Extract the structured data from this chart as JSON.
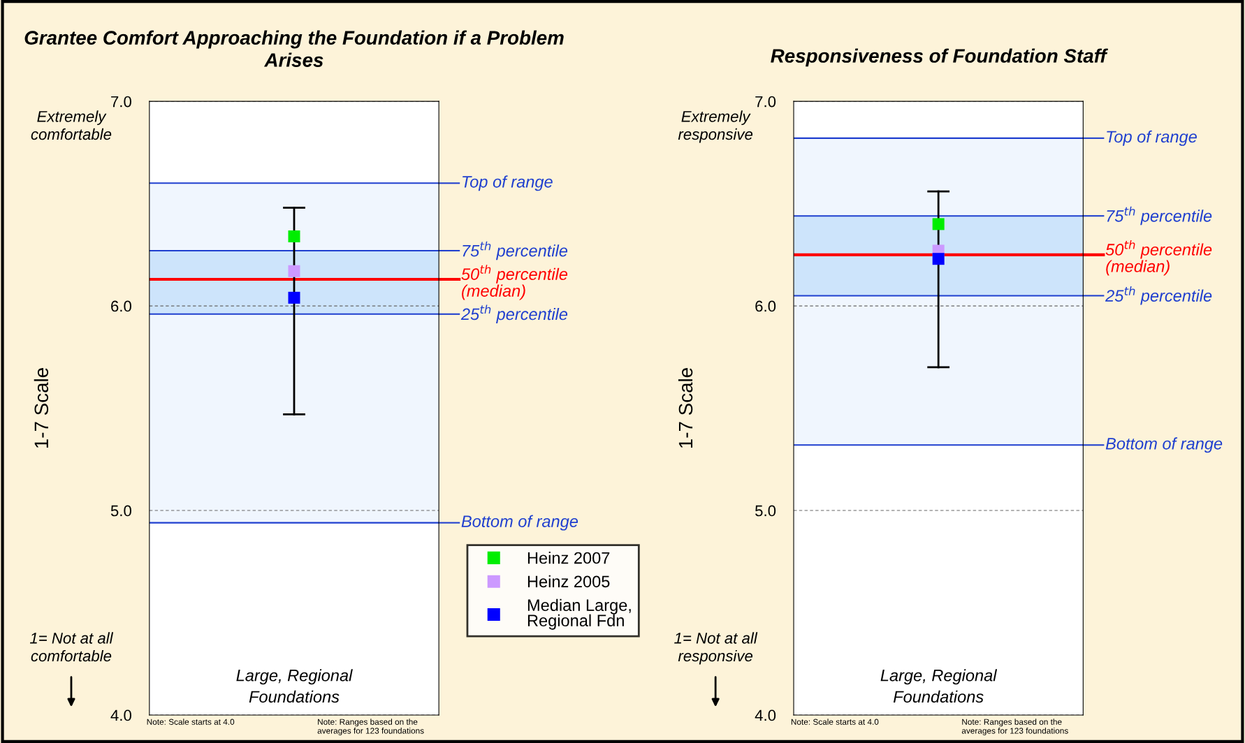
{
  "chart_data": [
    {
      "type": "scatter",
      "title": "Grantee Comfort Approaching the Foundation if a Problem Arises",
      "ylabel": "1-7 Scale",
      "categories": [
        null
      ],
      "ylim": [
        4.0,
        7.0
      ],
      "yticks": [
        {
          "value": 4.0,
          "label": "4.0"
        },
        {
          "value": 5.0,
          "label": "5.0"
        },
        {
          "value": 6.0,
          "label": "6.0"
        },
        {
          "value": 7.0,
          "label": "7.0"
        }
      ],
      "grid": "y",
      "legend": "right",
      "marker": "square",
      "series": [
        {
          "name": "Heinz 2007",
          "color": "#00ee00",
          "values": [
            6.34
          ],
          "errors": [
            [
              5.47,
              6.48
            ]
          ]
        },
        {
          "name": "Heinz 2005",
          "color": "#cc99ff",
          "values": [
            6.17
          ]
        },
        {
          "name": "Median Large, Regional Fdn",
          "color": "#0000ff",
          "values": [
            6.04
          ]
        }
      ],
      "bands": [
        {
          "axis": "y",
          "from": 4.94,
          "to": 6.6,
          "color": "#f0f6fe"
        },
        {
          "axis": "y",
          "from": 5.96,
          "to": 6.27,
          "color": "#cde4fb"
        }
      ],
      "ref_lines": [
        {
          "axis": "y",
          "value": 6.6,
          "label": "Top of range",
          "color": "#1f3fcf"
        },
        {
          "axis": "y",
          "value": 6.27,
          "label": "75$^{th}$ percentile",
          "color": "#1f3fcf"
        },
        {
          "axis": "y",
          "value": 6.13,
          "label": "50$^{th}$ percentile\n(median)",
          "color": "#ff0000"
        },
        {
          "axis": "y",
          "value": 5.96,
          "label": "25$^{th}$ percentile",
          "color": "#1f3fcf"
        },
        {
          "axis": "y",
          "value": 4.94,
          "label": "Bottom of range",
          "color": "#1f3fcf"
        }
      ],
      "annotations": [
        "Large, Regional Foundations",
        "Extremely comfortable",
        "1= Not at all comfortable",
        "Note: Scale starts at 4.0",
        "Note: Ranges based on the averages for 123 foundations"
      ]
    },
    {
      "type": "scatter",
      "title": "Responsiveness of Foundation Staff",
      "ylabel": "1-7 Scale",
      "categories": [
        null
      ],
      "ylim": [
        4.0,
        7.0
      ],
      "yticks": [
        {
          "value": 4.0,
          "label": "4.0"
        },
        {
          "value": 5.0,
          "label": "5.0"
        },
        {
          "value": 6.0,
          "label": "6.0"
        },
        {
          "value": 7.0,
          "label": "7.0"
        }
      ],
      "grid": "y",
      "marker": "square",
      "series": [
        {
          "color": "#00ee00",
          "values": [
            6.4
          ],
          "errors": [
            [
              5.7,
              6.56
            ]
          ]
        },
        {
          "color": "#cc99ff",
          "values": [
            6.27
          ]
        },
        {
          "color": "#0000ff",
          "values": [
            6.23
          ]
        }
      ],
      "bands": [
        {
          "axis": "y",
          "from": 5.32,
          "to": 6.82,
          "color": "#f0f6fe"
        },
        {
          "axis": "y",
          "from": 6.05,
          "to": 6.44,
          "color": "#cde4fb"
        }
      ],
      "ref_lines": [
        {
          "axis": "y",
          "value": 6.82,
          "label": "Top of range",
          "color": "#1f3fcf"
        },
        {
          "axis": "y",
          "value": 6.44,
          "label": "75$^{th}$ percentile",
          "color": "#1f3fcf"
        },
        {
          "axis": "y",
          "value": 6.25,
          "label": "50$^{th}$ percentile\n(median)",
          "color": "#ff0000"
        },
        {
          "axis": "y",
          "value": 6.05,
          "label": "25$^{th}$ percentile",
          "color": "#1f3fcf"
        },
        {
          "axis": "y",
          "value": 5.32,
          "label": "Bottom of range",
          "color": "#1f3fcf"
        }
      ],
      "annotations": [
        "Large, Regional Foundations",
        "Extremely responsive",
        "1= Not at all responsive",
        "Note: Scale starts at 4.0",
        "Note: Ranges based on the averages for 123 foundations"
      ]
    }
  ]
}
